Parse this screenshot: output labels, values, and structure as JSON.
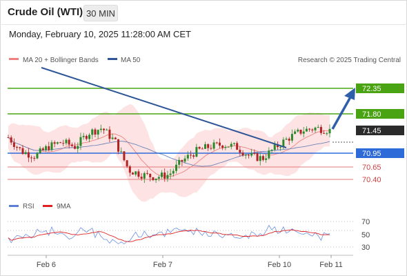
{
  "header": {
    "title": "Crude Oil (WTI)",
    "timeframe": "30 MIN",
    "datetime": "Monday, February 10, 2025 11:28:00 AM CET"
  },
  "main_legend": {
    "items": [
      {
        "label": "MA 20 + Bollinger Bands",
        "color": "#f08080"
      },
      {
        "label": "MA 50",
        "color": "#2f5597"
      }
    ],
    "attribution": "Research © 2025 Trading Central"
  },
  "rsi_legend": {
    "items": [
      {
        "label": "RSI",
        "color": "#5b7fd6"
      },
      {
        "label": "9MA",
        "color": "#e02020"
      }
    ]
  },
  "price_levels": [
    {
      "value": "72.35",
      "style": "resistance-green"
    },
    {
      "value": "71.80",
      "style": "resistance-green"
    },
    {
      "value": "71.45",
      "style": "last-price"
    },
    {
      "value": "70.95",
      "style": "pivot-blue"
    },
    {
      "value": "70.65",
      "style": "support-red"
    },
    {
      "value": "70.40",
      "style": "support-red"
    }
  ],
  "rsi_ticks": [
    "70",
    "50",
    "30"
  ],
  "x_axis_labels": [
    "Feb 6",
    "Feb 7",
    "Feb 10",
    "Feb 11"
  ],
  "colors": {
    "resistance": "#4aa312",
    "pivot": "#2e6bd9",
    "support": "#e07878",
    "last_price_bg": "#2b2b2b",
    "candle_up": "#2a8a2a",
    "candle_down": "#b22222",
    "bollinger_fill": "#fde1e1",
    "trend_arrow": "#2e5fa8"
  },
  "chart_data": {
    "type": "candlestick",
    "instrument": "Crude Oil (WTI)",
    "interval": "30 MIN",
    "x_labels": [
      "Feb 6",
      "Feb 7",
      "Feb 10",
      "Feb 11"
    ],
    "levels": {
      "resistance": [
        72.35,
        71.8
      ],
      "last": 71.45,
      "pivot": 70.95,
      "support": [
        70.65,
        70.4
      ]
    },
    "approx_close_path": [
      71.3,
      71.0,
      70.9,
      71.1,
      71.2,
      71.1,
      71.4,
      71.5,
      71.2,
      70.6,
      70.5,
      70.45,
      70.5,
      70.8,
      71.0,
      71.1,
      71.15,
      71.1,
      70.9,
      70.85,
      71.1,
      71.3,
      71.45,
      71.5,
      71.45
    ],
    "rsi_ylim": [
      20,
      80
    ],
    "rsi_ticks": [
      70,
      50,
      30
    ]
  }
}
